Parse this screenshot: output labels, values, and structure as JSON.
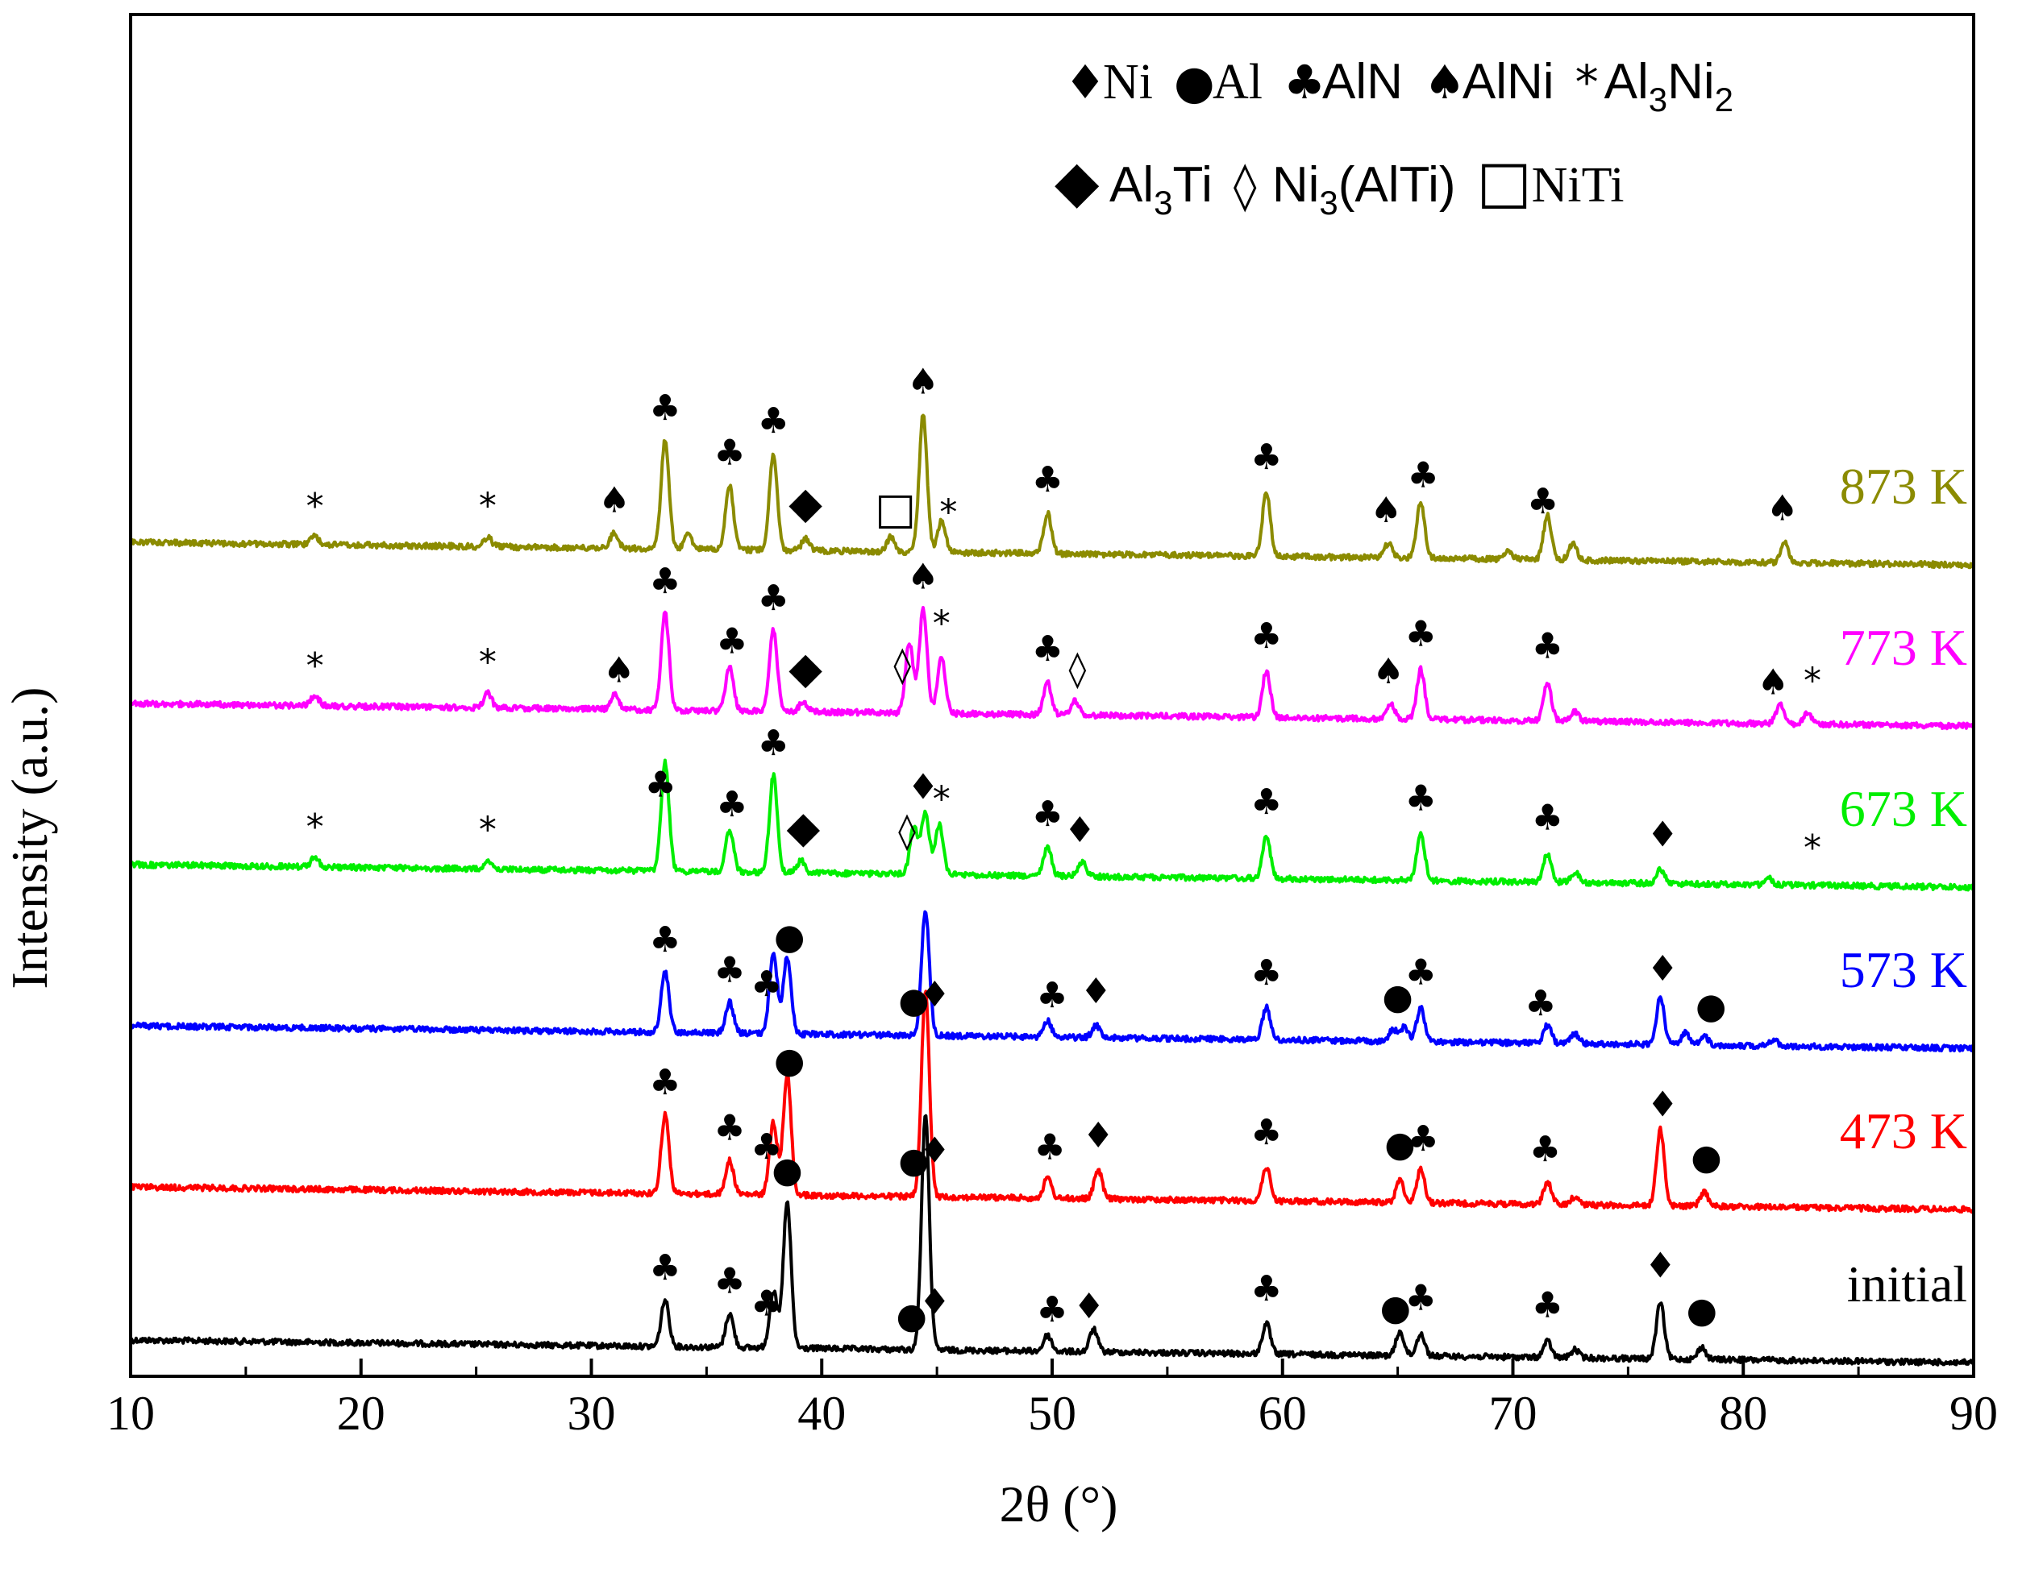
{
  "chart_data": {
    "type": "line",
    "title": "",
    "xlabel": "2θ (°)",
    "ylabel": "Intensity (a.u.)",
    "xlim": [
      10,
      90
    ],
    "xticks": [
      10,
      20,
      30,
      40,
      50,
      60,
      70,
      80,
      90
    ],
    "grid": false,
    "legend": {
      "position": "top-right",
      "row1": [
        {
          "symbol": "♦",
          "text": "Ni"
        },
        {
          "symbol": "●",
          "text": "Al"
        },
        {
          "symbol": "♣",
          "text": "AlN"
        },
        {
          "symbol": "♠",
          "text": "AlNi"
        },
        {
          "symbol": "*",
          "text": "Al",
          "sub": "3",
          "text2": "Ni",
          "sub2": "2"
        }
      ],
      "row2": [
        {
          "symbol": "◆",
          "text": "Al",
          "sub": "3",
          "text2": "Ti"
        },
        {
          "symbol": "◊",
          "text": "Ni",
          "sub": "3",
          "text2": "(AlTi)"
        },
        {
          "symbol": "□",
          "text": "NiTi"
        }
      ]
    },
    "series": [
      {
        "name": "initial",
        "color": "#000000",
        "offset": 0,
        "peaks": [
          [
            33.2,
            58
          ],
          [
            36.0,
            42
          ],
          [
            37.9,
            70
          ],
          [
            38.5,
            180
          ],
          [
            44.5,
            290
          ],
          [
            49.8,
            20
          ],
          [
            51.8,
            28
          ],
          [
            59.3,
            38
          ],
          [
            65.1,
            30
          ],
          [
            66.0,
            28
          ],
          [
            71.5,
            20
          ],
          [
            72.7,
            10
          ],
          [
            76.4,
            70
          ],
          [
            78.2,
            15
          ]
        ],
        "markers": [
          {
            "x": 33.2,
            "sym": "♣"
          },
          {
            "x": 36.0,
            "sym": "♣"
          },
          {
            "x": 37.6,
            "sym": "♣"
          },
          {
            "x": 38.5,
            "sym": "●"
          },
          {
            "x": 43.9,
            "sym": "●"
          },
          {
            "x": 44.9,
            "sym": "♦"
          },
          {
            "x": 50.0,
            "sym": "♣"
          },
          {
            "x": 51.6,
            "sym": "♦"
          },
          {
            "x": 59.3,
            "sym": "♣"
          },
          {
            "x": 64.9,
            "sym": "●"
          },
          {
            "x": 66.0,
            "sym": "♣"
          },
          {
            "x": 71.5,
            "sym": "♣"
          },
          {
            "x": 76.4,
            "sym": "♦"
          },
          {
            "x": 78.2,
            "sym": "●"
          }
        ]
      },
      {
        "name": "473 K",
        "color": "#ff0000",
        "offset": 190,
        "peaks": [
          [
            33.2,
            98
          ],
          [
            36.0,
            42
          ],
          [
            37.9,
            90
          ],
          [
            38.5,
            150
          ],
          [
            44.5,
            255
          ],
          [
            49.8,
            25
          ],
          [
            52.0,
            36
          ],
          [
            59.3,
            42
          ],
          [
            65.1,
            28
          ],
          [
            66.0,
            42
          ],
          [
            71.5,
            28
          ],
          [
            72.7,
            10
          ],
          [
            76.4,
            95
          ],
          [
            78.3,
            18
          ]
        ],
        "markers": [
          {
            "x": 33.2,
            "sym": "♣"
          },
          {
            "x": 36.0,
            "sym": "♣"
          },
          {
            "x": 37.6,
            "sym": "♣"
          },
          {
            "x": 38.6,
            "sym": "●"
          },
          {
            "x": 44.0,
            "sym": "●"
          },
          {
            "x": 44.9,
            "sym": "♦"
          },
          {
            "x": 49.9,
            "sym": "♣"
          },
          {
            "x": 52.0,
            "sym": "♦"
          },
          {
            "x": 59.3,
            "sym": "♣"
          },
          {
            "x": 65.1,
            "sym": "●"
          },
          {
            "x": 66.1,
            "sym": "♣"
          },
          {
            "x": 71.4,
            "sym": "♣"
          },
          {
            "x": 76.5,
            "sym": "♦"
          },
          {
            "x": 78.4,
            "sym": "●"
          }
        ]
      },
      {
        "name": "573 K",
        "color": "#0000ff",
        "offset": 390,
        "peaks": [
          [
            33.2,
            75
          ],
          [
            36.0,
            38
          ],
          [
            37.9,
            100
          ],
          [
            38.5,
            95
          ],
          [
            44.5,
            155
          ],
          [
            49.8,
            20
          ],
          [
            51.9,
            15
          ],
          [
            59.3,
            40
          ],
          [
            64.8,
            15
          ],
          [
            65.3,
            18
          ],
          [
            66.0,
            42
          ],
          [
            71.5,
            22
          ],
          [
            72.7,
            12
          ],
          [
            76.4,
            58
          ],
          [
            77.5,
            15
          ],
          [
            78.3,
            12
          ],
          [
            81.3,
            8
          ]
        ],
        "markers": [
          {
            "x": 33.2,
            "sym": "♣"
          },
          {
            "x": 36.0,
            "sym": "♣"
          },
          {
            "x": 37.6,
            "sym": "♣"
          },
          {
            "x": 38.6,
            "sym": "●"
          },
          {
            "x": 44.0,
            "sym": "●"
          },
          {
            "x": 44.9,
            "sym": "♦"
          },
          {
            "x": 50.0,
            "sym": "♣"
          },
          {
            "x": 51.9,
            "sym": "♦"
          },
          {
            "x": 59.3,
            "sym": "♣"
          },
          {
            "x": 65.0,
            "sym": "●"
          },
          {
            "x": 66.0,
            "sym": "♣"
          },
          {
            "x": 71.2,
            "sym": "♣"
          },
          {
            "x": 76.5,
            "sym": "♦"
          },
          {
            "x": 78.6,
            "sym": "●"
          }
        ]
      },
      {
        "name": "673 K",
        "color": "#00ee00",
        "offset": 590,
        "peaks": [
          [
            18.0,
            12
          ],
          [
            25.5,
            10
          ],
          [
            33.2,
            135
          ],
          [
            36.0,
            52
          ],
          [
            37.9,
            120
          ],
          [
            39.1,
            15
          ],
          [
            44.0,
            60
          ],
          [
            44.5,
            75
          ],
          [
            45.1,
            62
          ],
          [
            49.8,
            35
          ],
          [
            51.3,
            18
          ],
          [
            59.3,
            52
          ],
          [
            66.0,
            58
          ],
          [
            71.5,
            35
          ],
          [
            72.7,
            12
          ],
          [
            76.4,
            18
          ],
          [
            81.1,
            8
          ]
        ],
        "markers": [
          {
            "x": 18.0,
            "sym": "*"
          },
          {
            "x": 25.5,
            "sym": "*"
          },
          {
            "x": 33.0,
            "sym": "♣"
          },
          {
            "x": 36.1,
            "sym": "♣"
          },
          {
            "x": 37.9,
            "sym": "♣"
          },
          {
            "x": 39.2,
            "sym": "◆"
          },
          {
            "x": 43.7,
            "sym": "◊"
          },
          {
            "x": 44.4,
            "sym": "♦"
          },
          {
            "x": 45.2,
            "sym": "*"
          },
          {
            "x": 49.8,
            "sym": "♣"
          },
          {
            "x": 51.2,
            "sym": "♦"
          },
          {
            "x": 59.3,
            "sym": "♣"
          },
          {
            "x": 66.0,
            "sym": "♣"
          },
          {
            "x": 71.5,
            "sym": "♣"
          },
          {
            "x": 76.5,
            "sym": "♦"
          },
          {
            "x": 83.0,
            "sym": "*"
          }
        ]
      },
      {
        "name": "773 K",
        "color": "#ff00ff",
        "offset": 790,
        "peaks": [
          [
            18.0,
            12
          ],
          [
            25.5,
            18
          ],
          [
            31.0,
            18
          ],
          [
            33.2,
            120
          ],
          [
            36.0,
            55
          ],
          [
            37.9,
            100
          ],
          [
            39.2,
            12
          ],
          [
            43.8,
            88
          ],
          [
            44.4,
            128
          ],
          [
            45.2,
            70
          ],
          [
            49.8,
            40
          ],
          [
            51.0,
            18
          ],
          [
            59.3,
            58
          ],
          [
            64.7,
            18
          ],
          [
            66.0,
            62
          ],
          [
            71.5,
            48
          ],
          [
            72.7,
            12
          ],
          [
            81.6,
            25
          ],
          [
            82.8,
            15
          ]
        ],
        "markers": [
          {
            "x": 18.0,
            "sym": "*"
          },
          {
            "x": 25.5,
            "sym": "*"
          },
          {
            "x": 31.2,
            "sym": "♠"
          },
          {
            "x": 33.2,
            "sym": "♣"
          },
          {
            "x": 36.1,
            "sym": "♣"
          },
          {
            "x": 37.9,
            "sym": "♣"
          },
          {
            "x": 39.3,
            "sym": "◆"
          },
          {
            "x": 43.5,
            "sym": "◊"
          },
          {
            "x": 44.4,
            "sym": "♠"
          },
          {
            "x": 45.2,
            "sym": "*"
          },
          {
            "x": 49.8,
            "sym": "♣"
          },
          {
            "x": 51.1,
            "sym": "◊"
          },
          {
            "x": 59.3,
            "sym": "♣"
          },
          {
            "x": 64.6,
            "sym": "♠"
          },
          {
            "x": 66.0,
            "sym": "♣"
          },
          {
            "x": 71.5,
            "sym": "♣"
          },
          {
            "x": 81.3,
            "sym": "♠"
          },
          {
            "x": 83.0,
            "sym": "*"
          }
        ]
      },
      {
        "name": "873 K",
        "color": "#8b8b00",
        "offset": 990,
        "peaks": [
          [
            18.0,
            10
          ],
          [
            25.5,
            12
          ],
          [
            31.0,
            20
          ],
          [
            33.2,
            135
          ],
          [
            34.2,
            18
          ],
          [
            36.0,
            80
          ],
          [
            37.9,
            120
          ],
          [
            39.3,
            15
          ],
          [
            43.0,
            18
          ],
          [
            44.4,
            170
          ],
          [
            45.2,
            40
          ],
          [
            49.8,
            50
          ],
          [
            59.3,
            80
          ],
          [
            64.6,
            18
          ],
          [
            66.0,
            70
          ],
          [
            71.5,
            55
          ],
          [
            72.6,
            20
          ],
          [
            69.8,
            10
          ],
          [
            81.8,
            25
          ]
        ],
        "markers": [
          {
            "x": 18.0,
            "sym": "*"
          },
          {
            "x": 25.5,
            "sym": "*"
          },
          {
            "x": 31.0,
            "sym": "♠"
          },
          {
            "x": 33.2,
            "sym": "♣"
          },
          {
            "x": 36.0,
            "sym": "♣"
          },
          {
            "x": 37.9,
            "sym": "♣"
          },
          {
            "x": 39.3,
            "sym": "◆"
          },
          {
            "x": 43.2,
            "sym": "□"
          },
          {
            "x": 44.4,
            "sym": "♠"
          },
          {
            "x": 45.5,
            "sym": "*"
          },
          {
            "x": 49.8,
            "sym": "♣"
          },
          {
            "x": 59.3,
            "sym": "♣"
          },
          {
            "x": 64.5,
            "sym": "♠"
          },
          {
            "x": 66.1,
            "sym": "♣"
          },
          {
            "x": 71.3,
            "sym": "♣"
          },
          {
            "x": 81.7,
            "sym": "♠"
          }
        ]
      }
    ]
  }
}
